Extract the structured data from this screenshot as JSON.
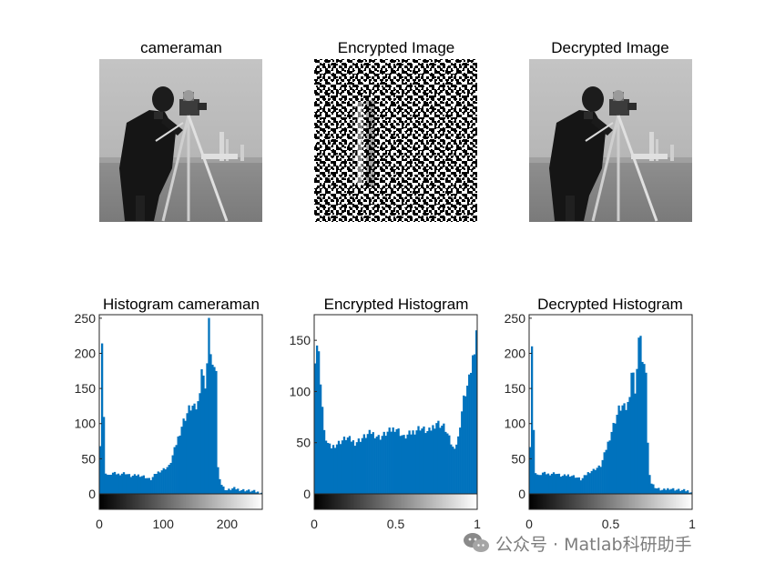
{
  "watermark": {
    "text": "公众号 · Matlab科研助手",
    "icon": "wechat-logo-icon"
  },
  "panels": [
    {
      "title": "cameraman"
    },
    {
      "title": "Encrypted Image"
    },
    {
      "title": "Decrypted Image"
    }
  ],
  "chart_data": [
    {
      "type": "bar",
      "title": "Histogram cameraman",
      "color": "#0072BD",
      "xlim": [
        0,
        255
      ],
      "ylim": [
        0,
        255
      ],
      "xticks": [
        0,
        100,
        200
      ],
      "yticks": [
        0,
        50,
        100,
        150,
        200,
        250
      ],
      "colorbar": "grayscale",
      "x": [
        0,
        5,
        8,
        10,
        15,
        20,
        30,
        40,
        50,
        60,
        70,
        80,
        90,
        100,
        110,
        120,
        130,
        140,
        145,
        150,
        155,
        160,
        165,
        170,
        172,
        175,
        180,
        183,
        185,
        190,
        195,
        200,
        210,
        220,
        230,
        240,
        250,
        255
      ],
      "values": [
        0,
        255,
        40,
        30,
        25,
        30,
        28,
        30,
        25,
        27,
        25,
        20,
        30,
        35,
        40,
        70,
        100,
        120,
        125,
        120,
        130,
        180,
        150,
        200,
        255,
        190,
        170,
        180,
        40,
        15,
        8,
        5,
        8,
        6,
        5,
        4,
        2,
        2
      ]
    },
    {
      "type": "bar",
      "title": "Encrypted Histogram",
      "color": "#0072BD",
      "xlim": [
        0,
        1
      ],
      "ylim": [
        0,
        175
      ],
      "xticks": [
        0,
        0.5,
        1
      ],
      "yticks": [
        0,
        50,
        100,
        150
      ],
      "colorbar": "grayscale",
      "x": [
        0,
        0.02,
        0.04,
        0.06,
        0.08,
        0.1,
        0.15,
        0.2,
        0.25,
        0.3,
        0.35,
        0.4,
        0.45,
        0.5,
        0.55,
        0.6,
        0.65,
        0.7,
        0.75,
        0.8,
        0.85,
        0.88,
        0.9,
        0.92,
        0.95,
        0.98,
        1
      ],
      "values": [
        130,
        150,
        110,
        60,
        50,
        45,
        50,
        55,
        50,
        55,
        60,
        55,
        60,
        65,
        55,
        60,
        65,
        60,
        70,
        65,
        45,
        50,
        75,
        95,
        110,
        140,
        170
      ]
    },
    {
      "type": "bar",
      "title": "Decrypted Histogram",
      "color": "#0072BD",
      "xlim": [
        0,
        1
      ],
      "ylim": [
        0,
        255
      ],
      "xticks": [
        0,
        0.5,
        1
      ],
      "yticks": [
        0,
        50,
        100,
        150,
        200,
        250
      ],
      "colorbar": "grayscale",
      "x": [
        0,
        0.02,
        0.03,
        0.04,
        0.06,
        0.08,
        0.12,
        0.16,
        0.2,
        0.24,
        0.28,
        0.32,
        0.36,
        0.4,
        0.44,
        0.48,
        0.52,
        0.55,
        0.57,
        0.59,
        0.61,
        0.63,
        0.65,
        0.67,
        0.68,
        0.69,
        0.71,
        0.72,
        0.73,
        0.75,
        0.78,
        0.82,
        0.86,
        0.9,
        0.94,
        0.98,
        1
      ],
      "values": [
        0,
        255,
        40,
        30,
        25,
        30,
        28,
        30,
        25,
        27,
        25,
        20,
        30,
        35,
        40,
        70,
        100,
        120,
        125,
        120,
        130,
        180,
        150,
        200,
        255,
        190,
        170,
        180,
        40,
        15,
        8,
        5,
        8,
        6,
        5,
        4,
        2
      ]
    }
  ]
}
